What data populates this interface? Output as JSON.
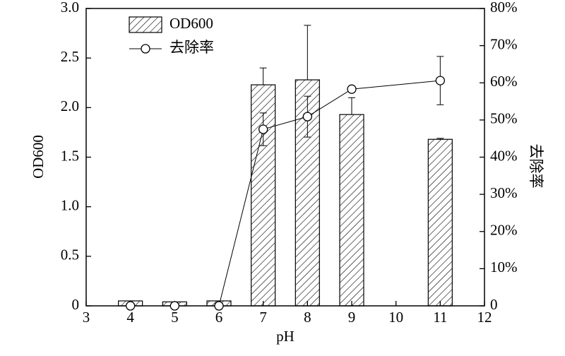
{
  "chart_data": {
    "type": "bar-line",
    "x_label": "pH",
    "y_label": "OD600",
    "y2_label": "去除率",
    "x": [
      4,
      5,
      6,
      7,
      8,
      9,
      11
    ],
    "xlim": [
      3,
      12
    ],
    "xticks": [
      3,
      4,
      5,
      6,
      7,
      8,
      9,
      10,
      11,
      12
    ],
    "ylim": [
      0,
      3
    ],
    "yticks": [
      0,
      0.5,
      {
        "value": 1,
        "label": "1.0"
      },
      1.5,
      {
        "value": 2,
        "label": "2.0"
      },
      2.5,
      {
        "value": 3,
        "label": "3.0"
      }
    ],
    "y2lim": [
      0,
      80
    ],
    "y2ticks": [
      0,
      {
        "value": 10,
        "label": "10%"
      },
      {
        "value": 20,
        "label": "20%"
      },
      {
        "value": 30,
        "label": "30%"
      },
      {
        "value": 40,
        "label": "40%"
      },
      {
        "value": 50,
        "label": "50%"
      },
      {
        "value": 60,
        "label": "60%"
      },
      {
        "value": 70,
        "label": "70%"
      },
      {
        "value": 80,
        "label": "80%"
      }
    ],
    "series": [
      {
        "name": "OD600",
        "kind": "bar",
        "axis": "y",
        "color": "#000000",
        "values": [
          0.05,
          0.04,
          0.05,
          2.23,
          2.28,
          1.93,
          1.68
        ],
        "errors": [
          null,
          null,
          null,
          0.17,
          0.55,
          0.17,
          0.01
        ]
      },
      {
        "name": "去除率",
        "kind": "line",
        "axis": "y2",
        "color": "#000000",
        "values": [
          0,
          0,
          0,
          47.5,
          50.9,
          58.3,
          60.6
        ],
        "errors": [
          null,
          null,
          null,
          4.4,
          5.5,
          null,
          6.5
        ]
      }
    ]
  }
}
